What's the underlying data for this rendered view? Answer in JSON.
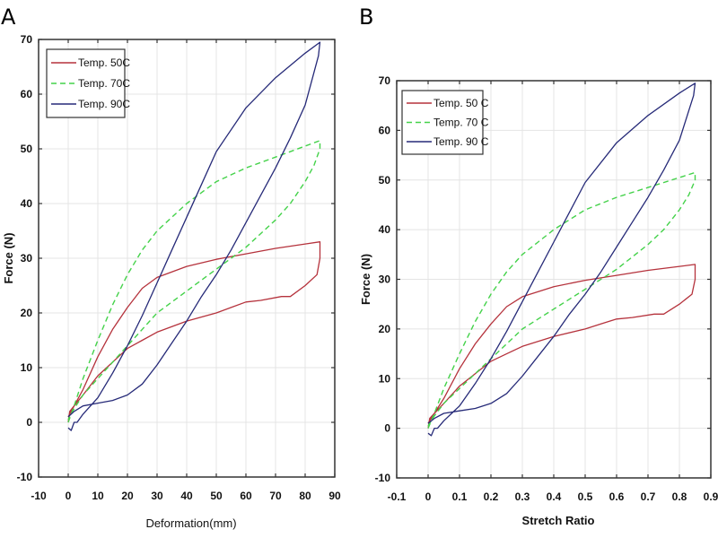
{
  "figure": {
    "panels": [
      "A",
      "B"
    ]
  },
  "colors": {
    "temp50": "#b5323c",
    "temp70": "#44d24a",
    "temp90": "#262a78"
  },
  "chart_data": [
    {
      "panel": "A",
      "type": "line",
      "title": "",
      "xlabel": "Deformation(mm)",
      "ylabel": "Force (N)",
      "xlim": [
        -10,
        90
      ],
      "ylim": [
        -10,
        70
      ],
      "xticks": [
        -10,
        0,
        10,
        20,
        30,
        40,
        50,
        60,
        70,
        80,
        90
      ],
      "yticks": [
        -10,
        0,
        10,
        20,
        30,
        40,
        50,
        60,
        70
      ],
      "grid": true,
      "legend": {
        "placement": "top-left",
        "entries": [
          "Temp. 50C",
          "Temp. 70C",
          "Temp. 90C"
        ]
      },
      "series": [
        {
          "name": "Temp. 50C",
          "style": "solid",
          "color_key": "temp50",
          "x": [
            0,
            0.5,
            2,
            5,
            10,
            15,
            20,
            25,
            30,
            40,
            50,
            60,
            70,
            80,
            85,
            85,
            84,
            80,
            75,
            72,
            65,
            60,
            55,
            50,
            40,
            30,
            25,
            20,
            15,
            10,
            5,
            2,
            0
          ],
          "y": [
            0,
            2,
            3,
            6,
            12,
            17,
            21,
            24.5,
            26.5,
            28.5,
            29.8,
            30.8,
            31.8,
            32.6,
            33,
            30,
            27,
            25,
            23,
            23,
            22.3,
            22,
            21,
            20,
            18.5,
            16.5,
            15,
            13.5,
            11,
            8.5,
            5,
            3,
            1
          ]
        },
        {
          "name": "Temp. 70C",
          "style": "dashed",
          "color_key": "temp70",
          "x": [
            0,
            2,
            5,
            10,
            15,
            20,
            25,
            30,
            35,
            40,
            50,
            60,
            70,
            80,
            85,
            85,
            83,
            80,
            75,
            70,
            60,
            50,
            40,
            30,
            25,
            20,
            15,
            10,
            5,
            2,
            0
          ],
          "y": [
            0,
            3,
            8,
            15,
            21.5,
            27,
            31.5,
            35,
            37.5,
            40,
            44,
            46.5,
            48.5,
            50.5,
            51.5,
            50,
            47,
            44,
            40,
            37,
            32,
            28,
            24,
            20,
            17,
            14,
            11,
            8,
            5,
            2.5,
            0.5
          ]
        },
        {
          "name": "Temp. 90C",
          "style": "solid",
          "color_key": "temp90",
          "x": [
            0,
            1,
            2,
            3,
            5,
            10,
            15,
            20,
            25,
            30,
            35,
            40,
            45,
            50,
            60,
            70,
            80,
            85,
            84.5,
            82,
            80,
            75,
            70,
            65,
            60,
            55,
            50,
            45,
            40,
            35,
            30,
            25,
            20,
            15,
            10,
            5,
            2,
            0
          ],
          "y": [
            -1,
            -1.5,
            0,
            0,
            1.5,
            4.5,
            9,
            14,
            19.5,
            25.5,
            31.5,
            37.5,
            43.5,
            49.5,
            57.5,
            63,
            67.5,
            69.5,
            67,
            62,
            58,
            52,
            46.5,
            41.5,
            36.5,
            31.5,
            27,
            23,
            18.5,
            14.5,
            10.5,
            7,
            5,
            4,
            3.5,
            3,
            2,
            1
          ]
        }
      ]
    },
    {
      "panel": "B",
      "type": "line",
      "title": "",
      "xlabel": "Stretch Ratio",
      "ylabel": "Force (N)",
      "xlim": [
        -0.1,
        0.9
      ],
      "ylim": [
        -10,
        70
      ],
      "xticks": [
        -0.1,
        0,
        0.1,
        0.2,
        0.3,
        0.4,
        0.5,
        0.6,
        0.7,
        0.8,
        0.9
      ],
      "yticks": [
        -10,
        0,
        10,
        20,
        30,
        40,
        50,
        60,
        70
      ],
      "grid": true,
      "legend": {
        "placement": "top-left",
        "entries": [
          "Temp. 50 C",
          "Temp. 70 C",
          "Temp. 90 C"
        ]
      },
      "series": [
        {
          "name": "Temp. 50 C",
          "style": "solid",
          "color_key": "temp50",
          "x": [
            0,
            0.005,
            0.02,
            0.05,
            0.1,
            0.15,
            0.2,
            0.25,
            0.3,
            0.4,
            0.5,
            0.6,
            0.7,
            0.8,
            0.85,
            0.85,
            0.84,
            0.8,
            0.75,
            0.72,
            0.65,
            0.6,
            0.55,
            0.5,
            0.4,
            0.3,
            0.25,
            0.2,
            0.15,
            0.1,
            0.05,
            0.02,
            0
          ],
          "y": [
            0,
            2,
            3,
            6,
            12,
            17,
            21,
            24.5,
            26.5,
            28.5,
            29.8,
            30.8,
            31.8,
            32.6,
            33,
            30,
            27,
            25,
            23,
            23,
            22.3,
            22,
            21,
            20,
            18.5,
            16.5,
            15,
            13.5,
            11,
            8.5,
            5,
            3,
            1
          ]
        },
        {
          "name": "Temp. 70 C",
          "style": "dashed",
          "color_key": "temp70",
          "x": [
            0,
            0.02,
            0.05,
            0.1,
            0.15,
            0.2,
            0.25,
            0.3,
            0.35,
            0.4,
            0.5,
            0.6,
            0.7,
            0.8,
            0.85,
            0.85,
            0.83,
            0.8,
            0.75,
            0.7,
            0.6,
            0.5,
            0.4,
            0.3,
            0.25,
            0.2,
            0.15,
            0.1,
            0.05,
            0.02,
            0
          ],
          "y": [
            0,
            3,
            8,
            15,
            21.5,
            27,
            31.5,
            35,
            37.5,
            40,
            44,
            46.5,
            48.5,
            50.5,
            51.5,
            50,
            47,
            44,
            40,
            37,
            32,
            28,
            24,
            20,
            17,
            14,
            11,
            8,
            5,
            2.5,
            0.5
          ]
        },
        {
          "name": "Temp. 90 C",
          "style": "solid",
          "color_key": "temp90",
          "x": [
            0,
            0.01,
            0.02,
            0.03,
            0.05,
            0.1,
            0.15,
            0.2,
            0.25,
            0.3,
            0.35,
            0.4,
            0.45,
            0.5,
            0.6,
            0.7,
            0.8,
            0.85,
            0.845,
            0.82,
            0.8,
            0.75,
            0.7,
            0.65,
            0.6,
            0.55,
            0.5,
            0.45,
            0.4,
            0.35,
            0.3,
            0.25,
            0.2,
            0.15,
            0.1,
            0.05,
            0.02,
            0
          ],
          "y": [
            -1,
            -1.5,
            0,
            0,
            1.5,
            4.5,
            9,
            14,
            19.5,
            25.5,
            31.5,
            37.5,
            43.5,
            49.5,
            57.5,
            63,
            67.5,
            69.5,
            67,
            62,
            58,
            52,
            46.5,
            41.5,
            36.5,
            31.5,
            27,
            23,
            18.5,
            14.5,
            10.5,
            7,
            5,
            4,
            3.5,
            3,
            2,
            1
          ]
        }
      ]
    }
  ]
}
